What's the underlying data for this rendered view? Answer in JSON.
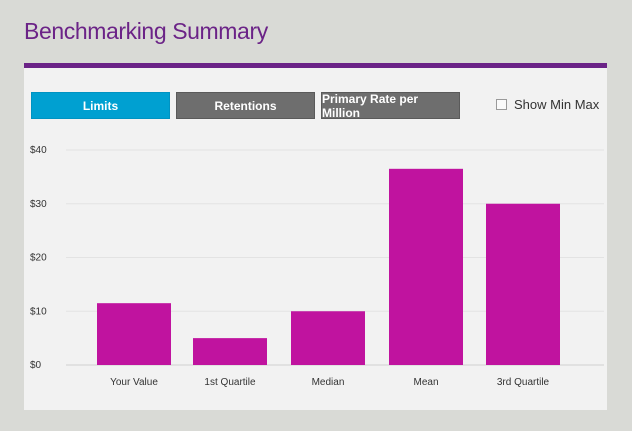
{
  "header": {
    "title": "Benchmarking Summary"
  },
  "tabs": [
    {
      "label": "Limits",
      "active": true
    },
    {
      "label": "Retentions",
      "active": false
    },
    {
      "label": "Primary Rate per Million",
      "active": false
    }
  ],
  "show_min_max": {
    "label": "Show Min Max",
    "checked": false
  },
  "colors": {
    "brand": "#6b2387",
    "active_tab": "#00a0d1",
    "inactive_tab": "#6e6e6e",
    "bar": "#c0139f"
  },
  "chart_data": {
    "type": "bar",
    "categories": [
      "Your Value",
      "1st Quartile",
      "Median",
      "Mean",
      "3rd Quartile"
    ],
    "values": [
      11.5,
      5,
      10,
      36.5,
      30
    ],
    "ylim": [
      0,
      40
    ],
    "yticks": [
      0,
      10,
      20,
      30,
      40
    ],
    "ytick_labels": [
      "$0",
      "$10",
      "$20",
      "$30",
      "$40"
    ],
    "grid": true
  }
}
